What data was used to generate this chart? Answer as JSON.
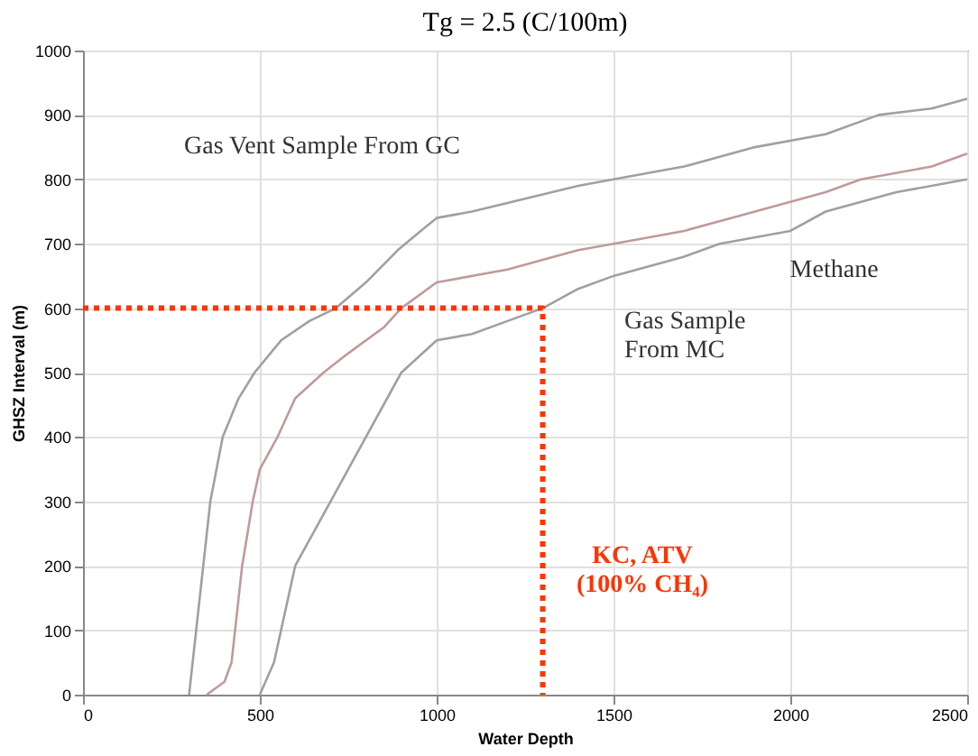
{
  "chart_data": {
    "type": "line",
    "title": "Tg = 2.5 (C/100m)",
    "xlabel": "Water Depth",
    "ylabel": "GHSZ Interval (m)",
    "xlim": [
      0,
      2500
    ],
    "xticks": [
      0,
      500,
      1000,
      1500,
      2000,
      2500
    ],
    "ylim": [
      0,
      1000
    ],
    "yticks": [
      0,
      100,
      200,
      300,
      400,
      500,
      600,
      700,
      800,
      900,
      1000
    ],
    "grid": true,
    "line_style": "solid",
    "marker": "none",
    "series": [
      {
        "color": "#a0a0a0",
        "x": [
          300,
          320,
          340,
          360,
          395,
          440,
          485,
          560,
          640,
          715,
          800,
          890,
          955,
          1000,
          1100,
          1250,
          1400,
          1500,
          1700,
          1900,
          2100,
          2250,
          2400,
          2500
        ],
        "values": [
          0,
          100,
          200,
          300,
          400,
          460,
          500,
          550,
          580,
          600,
          640,
          690,
          720,
          740,
          750,
          770,
          790,
          800,
          820,
          850,
          870,
          900,
          910,
          925
        ]
      },
      {
        "color": "#c09a9a",
        "x": [
          350,
          400,
          420,
          450,
          480,
          500,
          550,
          600,
          680,
          750,
          850,
          900,
          1000,
          1200,
          1400,
          1500,
          1700,
          1900,
          2100,
          2200,
          2400,
          2500
        ],
        "values": [
          0,
          20,
          50,
          200,
          300,
          350,
          400,
          460,
          500,
          530,
          570,
          600,
          640,
          660,
          690,
          700,
          720,
          750,
          780,
          800,
          820,
          840
        ]
      },
      {
        "color": "#a0a0a0",
        "x": [
          500,
          540,
          560,
          600,
          700,
          800,
          900,
          1000,
          1100,
          1200,
          1300,
          1400,
          1500,
          1700,
          1800,
          2000,
          2100,
          2300,
          2500
        ],
        "values": [
          0,
          50,
          100,
          200,
          300,
          400,
          500,
          550,
          560,
          580,
          600,
          630,
          650,
          680,
          700,
          720,
          750,
          780,
          800
        ]
      },
      {
        "color": "#ff3300",
        "line_style": "dotted",
        "x": [
          0,
          1300,
          1300
        ],
        "values": [
          600,
          600,
          0
        ]
      }
    ],
    "annotations": [
      {
        "text": "Gas Vent Sample From GC",
        "x": 1000,
        "y": 740
      },
      "Gas Sample\nFrom MC",
      {
        "text": "Methane",
        "x": 2050,
        "y": 730
      },
      "KC, ATV\n(100% CH₄)"
    ]
  }
}
